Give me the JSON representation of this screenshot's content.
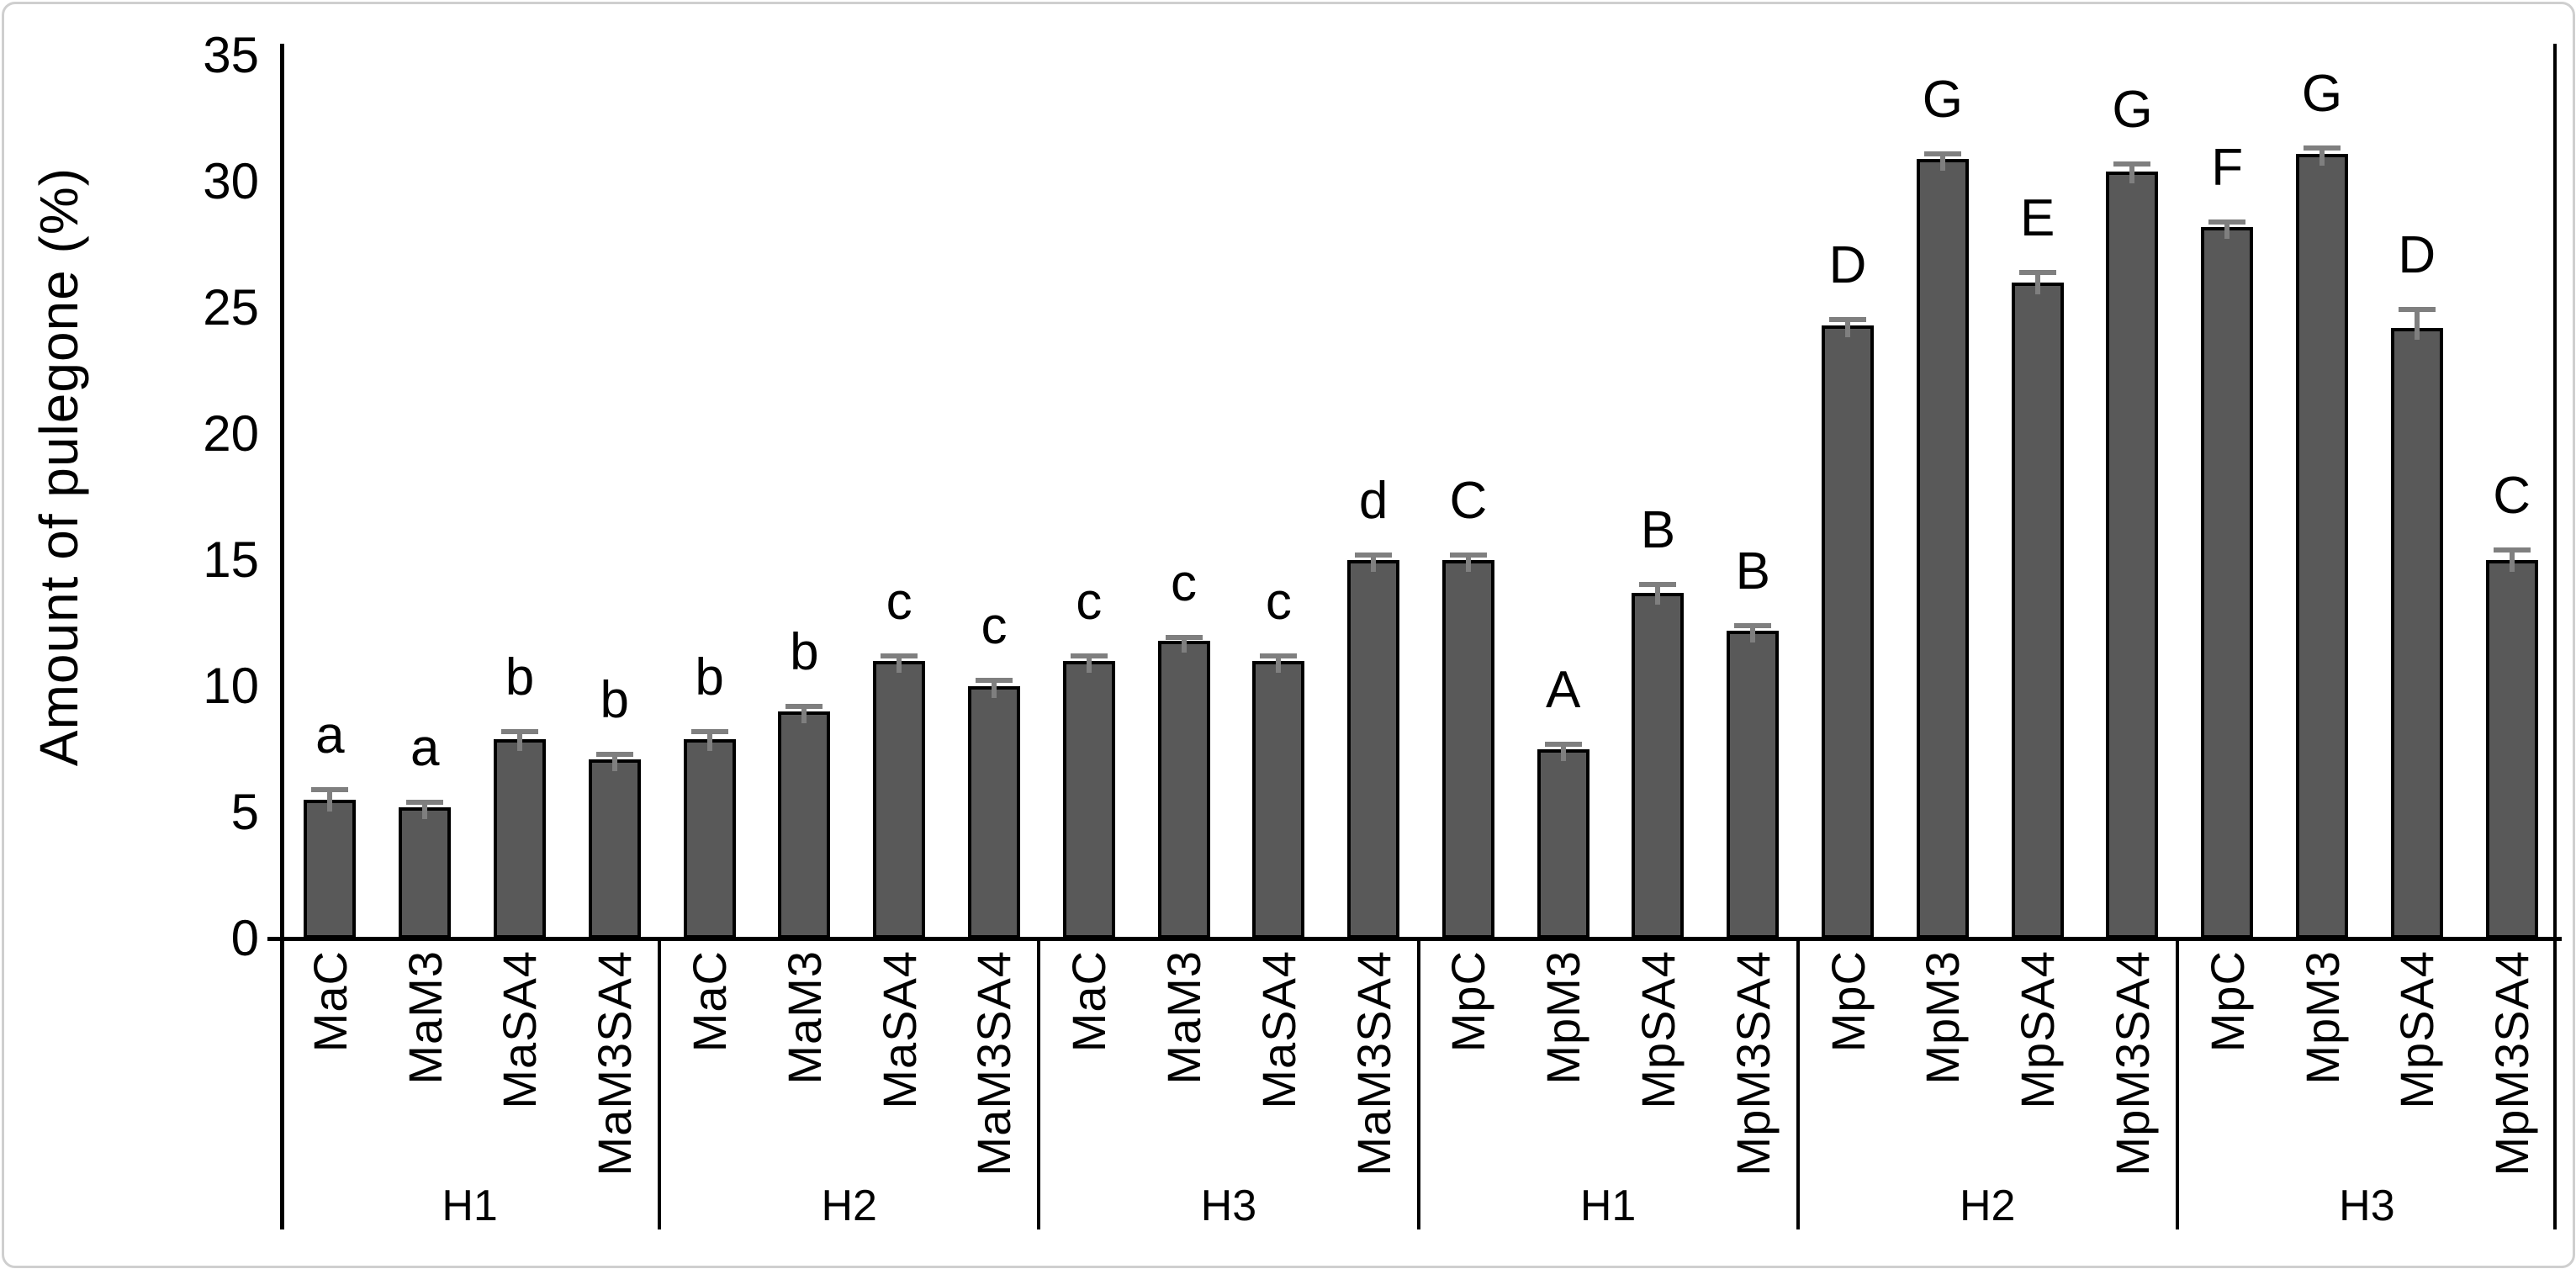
{
  "chart_data": {
    "type": "bar",
    "title": "",
    "ylabel": "Amount of pulegone (%)",
    "xlabel": "",
    "ylim": [
      0,
      35
    ],
    "yticks": [
      0,
      5,
      10,
      15,
      20,
      25,
      30,
      35
    ],
    "grid": false,
    "legend": false,
    "bar_color": "#595959",
    "bar_border_color": "#000000",
    "error_bar_color": "#7f7f7f",
    "groups": [
      {
        "harvest": "H1",
        "bars": [
          {
            "category": "MaC",
            "value": 5.5,
            "error": 0.5,
            "letter": "a"
          },
          {
            "category": "MaM3",
            "value": 5.2,
            "error": 0.3,
            "letter": "a"
          },
          {
            "category": "MaSA4",
            "value": 7.9,
            "error": 0.4,
            "letter": "b"
          },
          {
            "category": "MaM3SA4",
            "value": 7.1,
            "error": 0.3,
            "letter": "b"
          }
        ]
      },
      {
        "harvest": "H2",
        "bars": [
          {
            "category": "MaC",
            "value": 7.9,
            "error": 0.4,
            "letter": "b"
          },
          {
            "category": "MaM3",
            "value": 9.0,
            "error": 0.3,
            "letter": "b"
          },
          {
            "category": "MaSA4",
            "value": 11.0,
            "error": 0.3,
            "letter": "c"
          },
          {
            "category": "MaM3SA4",
            "value": 10.0,
            "error": 0.35,
            "letter": "c"
          }
        ]
      },
      {
        "harvest": "H3",
        "bars": [
          {
            "category": "MaC",
            "value": 11.0,
            "error": 0.3,
            "letter": "c"
          },
          {
            "category": "MaM3",
            "value": 11.8,
            "error": 0.25,
            "letter": "c"
          },
          {
            "category": "MaSA4",
            "value": 11.0,
            "error": 0.3,
            "letter": "c"
          },
          {
            "category": "MaM3SA4",
            "value": 15.0,
            "error": 0.3,
            "letter": "d"
          }
        ]
      },
      {
        "harvest": "H1",
        "bars": [
          {
            "category": "MpC",
            "value": 15.0,
            "error": 0.3,
            "letter": "C"
          },
          {
            "category": "MpM3",
            "value": 7.5,
            "error": 0.3,
            "letter": "A"
          },
          {
            "category": "MpSA4",
            "value": 13.7,
            "error": 0.45,
            "letter": "B"
          },
          {
            "category": "MpM3SA4",
            "value": 12.2,
            "error": 0.3,
            "letter": "B"
          }
        ]
      },
      {
        "harvest": "H2",
        "bars": [
          {
            "category": "MpC",
            "value": 24.3,
            "error": 0.35,
            "letter": "D"
          },
          {
            "category": "MpM3",
            "value": 30.9,
            "error": 0.3,
            "letter": "G"
          },
          {
            "category": "MpSA4",
            "value": 26.0,
            "error": 0.5,
            "letter": "E"
          },
          {
            "category": "MpM3SA4",
            "value": 30.4,
            "error": 0.4,
            "letter": "G"
          }
        ]
      },
      {
        "harvest": "H3",
        "bars": [
          {
            "category": "MpC",
            "value": 28.2,
            "error": 0.3,
            "letter": "F"
          },
          {
            "category": "MpM3",
            "value": 31.1,
            "error": 0.35,
            "letter": "G"
          },
          {
            "category": "MpSA4",
            "value": 24.2,
            "error": 0.85,
            "letter": "D"
          },
          {
            "category": "MpM3SA4",
            "value": 15.0,
            "error": 0.5,
            "letter": "C"
          }
        ]
      }
    ]
  }
}
